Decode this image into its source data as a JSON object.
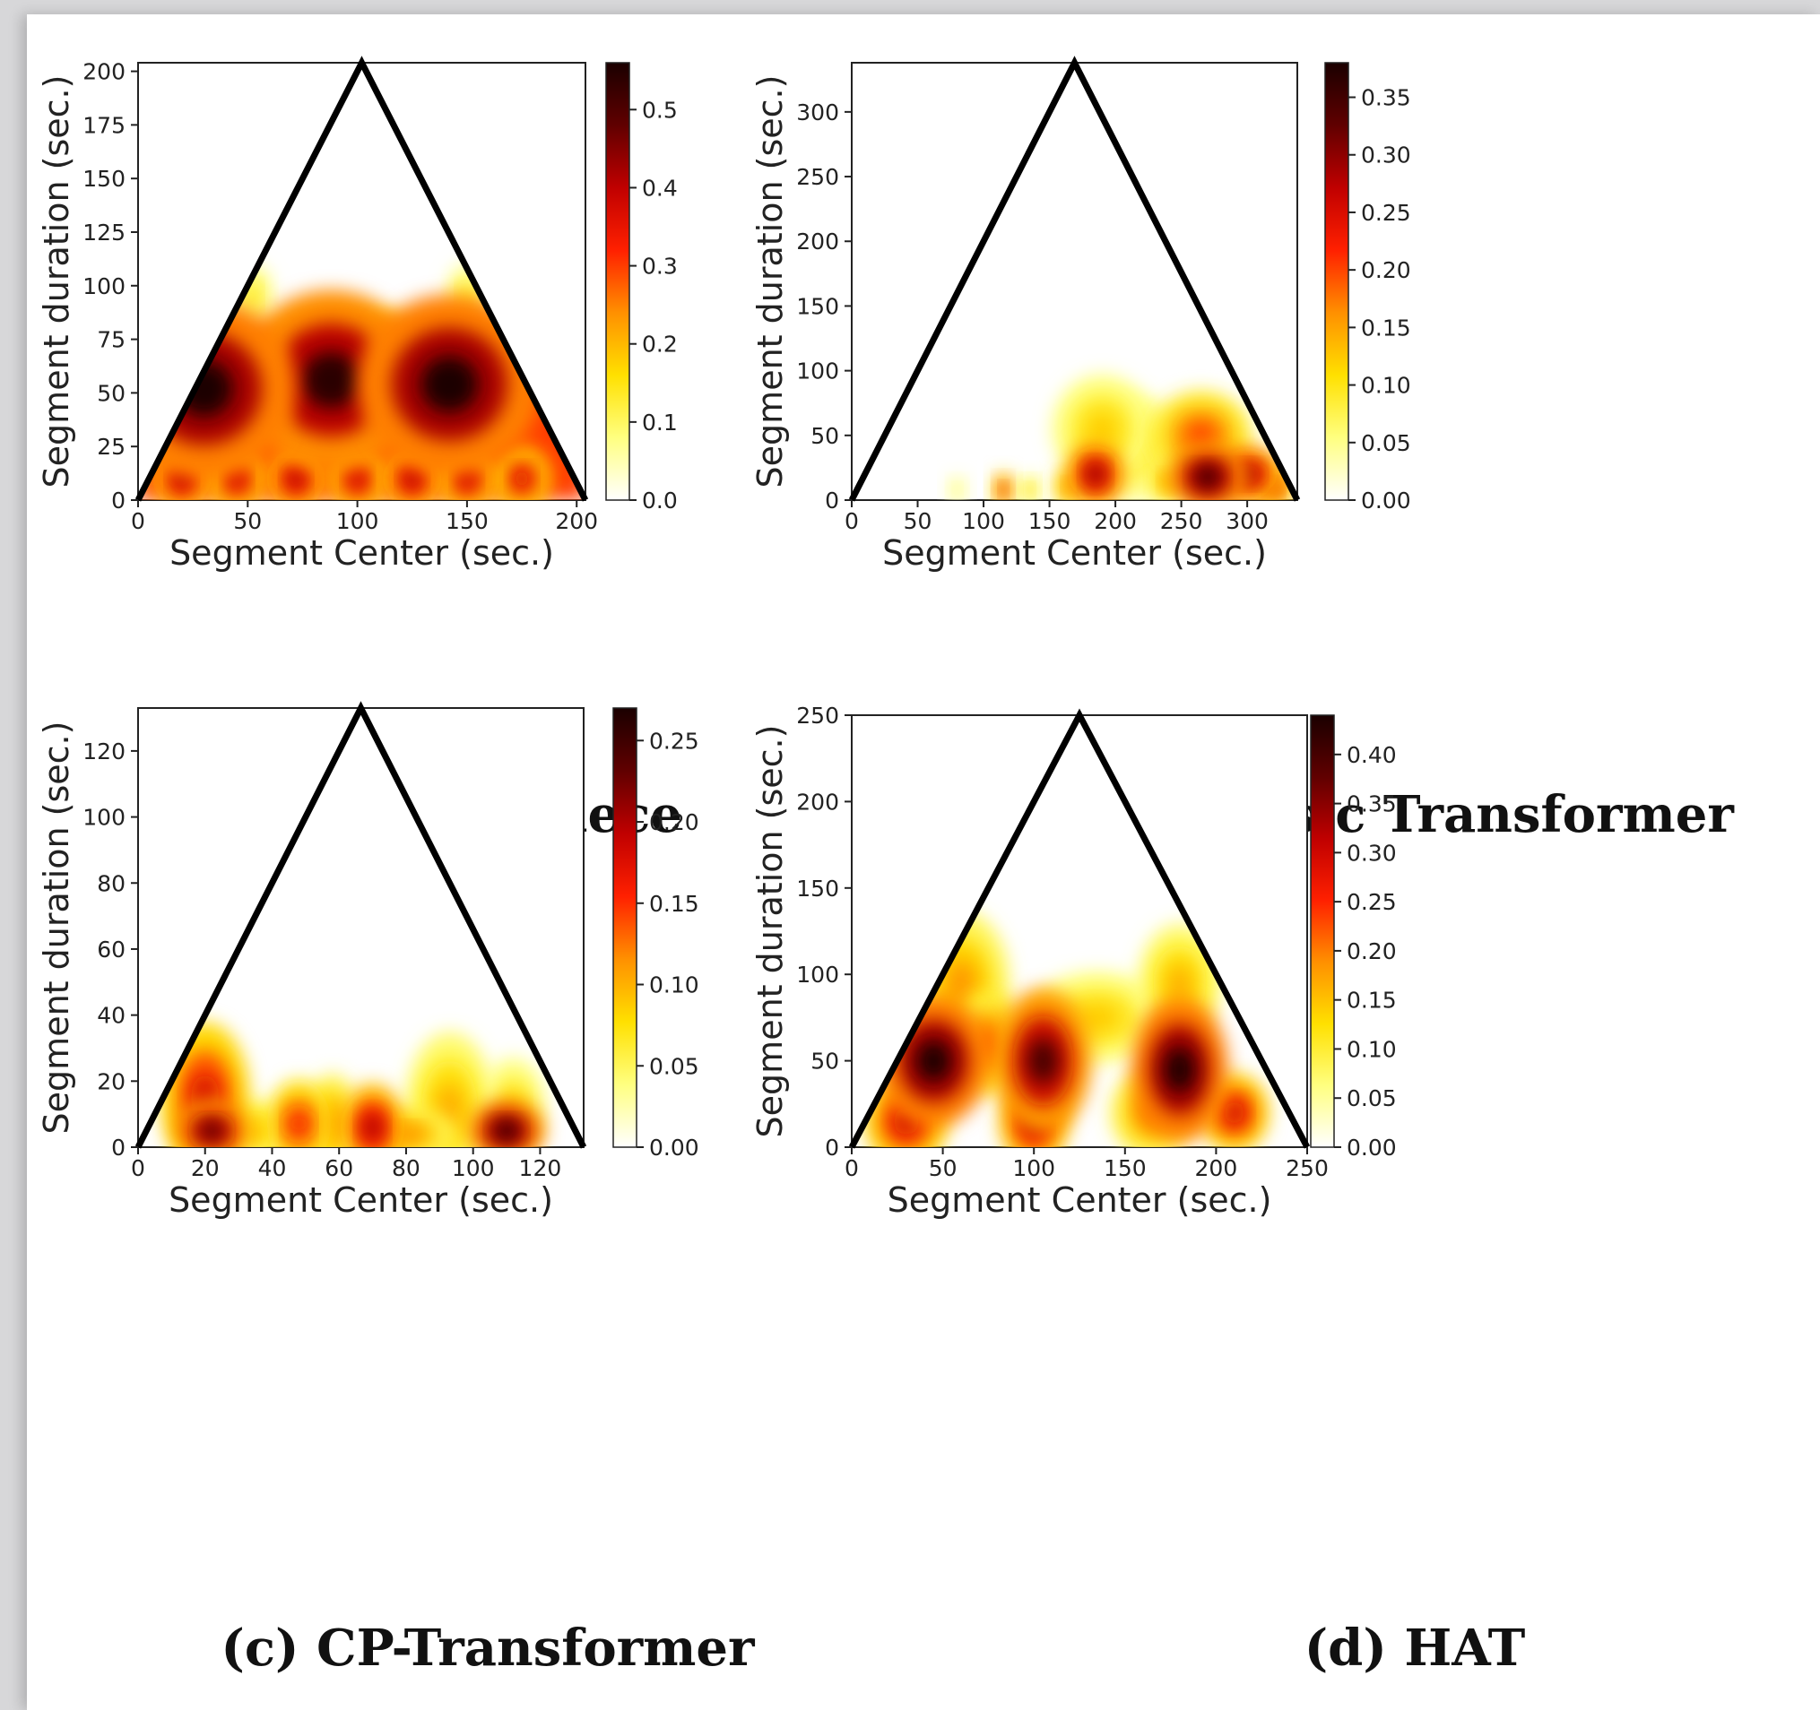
{
  "figure": {
    "captions": [
      "(a) Real piece",
      "(b) Music Transformer",
      "(c) CP-Transformer",
      "(d) HAT"
    ]
  },
  "colormap": {
    "name": "hot (reversed)",
    "stops": [
      "#ffffff",
      "#ffff80",
      "#ffe000",
      "#ff9000",
      "#ff2000",
      "#c00000",
      "#600000",
      "#1a0000"
    ]
  },
  "chart_data": [
    {
      "type": "heatmap",
      "title": "(a) Real piece",
      "xlabel": "Segment Center (sec.)",
      "ylabel": "Segment duration (sec.)",
      "xlim": [
        0,
        204
      ],
      "ylim": [
        0,
        204
      ],
      "xticks": [
        0,
        50,
        100,
        150,
        200
      ],
      "yticks": [
        0,
        25,
        50,
        75,
        100,
        125,
        150,
        175,
        200
      ],
      "xtick_labels": [
        "0",
        "50",
        "100",
        "150",
        "200"
      ],
      "ytick_labels": [
        "0",
        "25",
        "50",
        "75",
        "100",
        "125",
        "150",
        "175",
        "200"
      ],
      "triangle": {
        "x0": 0,
        "x1": 204,
        "apex_x": 102,
        "apex_y": 204
      },
      "colorbar": {
        "min": 0.0,
        "max": 0.56,
        "ticks": [
          "0.0",
          "0.1",
          "0.2",
          "0.3",
          "0.4",
          "0.5"
        ],
        "tick_values": [
          0.0,
          0.1,
          0.2,
          0.3,
          0.4,
          0.5
        ]
      },
      "background_level": 0.3,
      "background_top": 78,
      "blobs": [
        {
          "x": 30,
          "y": 52,
          "v": 0.56,
          "sx": 22,
          "sy": 22
        },
        {
          "x": 88,
          "y": 56,
          "v": 0.54,
          "sx": 22,
          "sy": 22
        },
        {
          "x": 142,
          "y": 54,
          "v": 0.56,
          "sx": 22,
          "sy": 22
        },
        {
          "x": 20,
          "y": 10,
          "v": 0.42,
          "sx": 7,
          "sy": 8
        },
        {
          "x": 45,
          "y": 10,
          "v": 0.4,
          "sx": 7,
          "sy": 8
        },
        {
          "x": 72,
          "y": 10,
          "v": 0.42,
          "sx": 7,
          "sy": 8
        },
        {
          "x": 100,
          "y": 10,
          "v": 0.4,
          "sx": 7,
          "sy": 8
        },
        {
          "x": 125,
          "y": 10,
          "v": 0.42,
          "sx": 7,
          "sy": 8
        },
        {
          "x": 150,
          "y": 10,
          "v": 0.4,
          "sx": 7,
          "sy": 8
        },
        {
          "x": 175,
          "y": 10,
          "v": 0.38,
          "sx": 7,
          "sy": 8
        },
        {
          "x": 52,
          "y": 95,
          "v": 0.14,
          "sx": 5,
          "sy": 8
        },
        {
          "x": 150,
          "y": 95,
          "v": 0.14,
          "sx": 5,
          "sy": 8
        },
        {
          "x": 95,
          "y": 80,
          "v": 0.18,
          "sx": 18,
          "sy": 5
        }
      ]
    },
    {
      "type": "heatmap",
      "title": "(b) Music Transformer",
      "xlabel": "Segment Center (sec.)",
      "ylabel": "Segment duration (sec.)",
      "xlim": [
        0,
        338
      ],
      "ylim": [
        0,
        338
      ],
      "xticks": [
        0,
        50,
        100,
        150,
        200,
        250,
        300
      ],
      "yticks": [
        0,
        50,
        100,
        150,
        200,
        250,
        300
      ],
      "xtick_labels": [
        "0",
        "50",
        "100",
        "150",
        "200",
        "250",
        "300"
      ],
      "ytick_labels": [
        "0",
        "50",
        "100",
        "150",
        "200",
        "250",
        "300"
      ],
      "triangle": {
        "x0": 0,
        "x1": 338,
        "apex_x": 169,
        "apex_y": 338
      },
      "colorbar": {
        "min": 0.0,
        "max": 0.38,
        "ticks": [
          "0.00",
          "0.05",
          "0.10",
          "0.15",
          "0.20",
          "0.25",
          "0.30",
          "0.35"
        ],
        "tick_values": [
          0.0,
          0.05,
          0.1,
          0.15,
          0.2,
          0.25,
          0.3,
          0.35
        ]
      },
      "background_level": 0,
      "background_top": 0,
      "blobs": [
        {
          "x": 185,
          "y": 20,
          "v": 0.3,
          "sx": 12,
          "sy": 14
        },
        {
          "x": 190,
          "y": 55,
          "v": 0.12,
          "sx": 20,
          "sy": 22
        },
        {
          "x": 215,
          "y": 40,
          "v": 0.1,
          "sx": 18,
          "sy": 22
        },
        {
          "x": 265,
          "y": 50,
          "v": 0.2,
          "sx": 20,
          "sy": 18
        },
        {
          "x": 270,
          "y": 18,
          "v": 0.36,
          "sx": 16,
          "sy": 14
        },
        {
          "x": 300,
          "y": 20,
          "v": 0.3,
          "sx": 14,
          "sy": 12
        },
        {
          "x": 320,
          "y": 10,
          "v": 0.25,
          "sx": 8,
          "sy": 8
        },
        {
          "x": 115,
          "y": 8,
          "v": 0.25,
          "sx": 4,
          "sy": 7
        },
        {
          "x": 135,
          "y": 8,
          "v": 0.12,
          "sx": 4,
          "sy": 6
        },
        {
          "x": 80,
          "y": 8,
          "v": 0.06,
          "sx": 4,
          "sy": 6
        },
        {
          "x": 165,
          "y": 10,
          "v": 0.18,
          "sx": 6,
          "sy": 8
        },
        {
          "x": 240,
          "y": 15,
          "v": 0.15,
          "sx": 8,
          "sy": 10
        }
      ]
    },
    {
      "type": "heatmap",
      "title": "(c) CP-Transformer",
      "xlabel": "Segment Center (sec.)",
      "ylabel": "Segment duration (sec.)",
      "xlim": [
        0,
        133
      ],
      "ylim": [
        0,
        133
      ],
      "xticks": [
        0,
        20,
        40,
        60,
        80,
        100,
        120
      ],
      "yticks": [
        0,
        20,
        40,
        60,
        80,
        100,
        120
      ],
      "xtick_labels": [
        "0",
        "20",
        "40",
        "60",
        "80",
        "100",
        "120"
      ],
      "ytick_labels": [
        "0",
        "20",
        "40",
        "60",
        "80",
        "100",
        "120"
      ],
      "triangle": {
        "x0": 0,
        "x1": 133,
        "apex_x": 66.5,
        "apex_y": 133
      },
      "colorbar": {
        "min": 0.0,
        "max": 0.27,
        "ticks": [
          "0.00",
          "0.05",
          "0.10",
          "0.15",
          "0.20",
          "0.25"
        ],
        "tick_values": [
          0.0,
          0.05,
          0.1,
          0.15,
          0.2,
          0.25
        ]
      },
      "background_level": 0,
      "background_top": 0,
      "blobs": [
        {
          "x": 20,
          "y": 15,
          "v": 0.18,
          "sx": 7,
          "sy": 12
        },
        {
          "x": 22,
          "y": 5,
          "v": 0.24,
          "sx": 6,
          "sy": 5
        },
        {
          "x": 48,
          "y": 7,
          "v": 0.16,
          "sx": 5,
          "sy": 7
        },
        {
          "x": 58,
          "y": 7,
          "v": 0.12,
          "sx": 4,
          "sy": 8
        },
        {
          "x": 70,
          "y": 6,
          "v": 0.2,
          "sx": 5,
          "sy": 7
        },
        {
          "x": 93,
          "y": 12,
          "v": 0.1,
          "sx": 7,
          "sy": 12
        },
        {
          "x": 110,
          "y": 5,
          "v": 0.26,
          "sx": 6,
          "sy": 5
        },
        {
          "x": 112,
          "y": 12,
          "v": 0.08,
          "sx": 5,
          "sy": 8
        },
        {
          "x": 35,
          "y": 5,
          "v": 0.1,
          "sx": 4,
          "sy": 5
        },
        {
          "x": 80,
          "y": 4,
          "v": 0.12,
          "sx": 8,
          "sy": 4
        }
      ]
    },
    {
      "type": "heatmap",
      "title": "(d) HAT",
      "xlabel": "Segment Center (sec.)",
      "ylabel": "Segment duration (sec.)",
      "xlim": [
        0,
        250
      ],
      "ylim": [
        0,
        250
      ],
      "xticks": [
        0,
        50,
        100,
        150,
        200,
        250
      ],
      "yticks": [
        0,
        50,
        100,
        150,
        200,
        250
      ],
      "xtick_labels": [
        "0",
        "50",
        "100",
        "150",
        "200",
        "250"
      ],
      "ytick_labels": [
        "0",
        "50",
        "100",
        "150",
        "200",
        "250"
      ],
      "triangle": {
        "x0": 0,
        "x1": 250,
        "apex_x": 125,
        "apex_y": 250
      },
      "colorbar": {
        "min": 0.0,
        "max": 0.44,
        "ticks": [
          "0.00",
          "0.05",
          "0.10",
          "0.15",
          "0.20",
          "0.25",
          "0.30",
          "0.35",
          "0.40"
        ],
        "tick_values": [
          0.0,
          0.05,
          0.1,
          0.15,
          0.2,
          0.25,
          0.3,
          0.35,
          0.4
        ]
      },
      "background_level": 0,
      "background_top": 0,
      "blobs": [
        {
          "x": 45,
          "y": 50,
          "v": 0.44,
          "sx": 16,
          "sy": 20
        },
        {
          "x": 60,
          "y": 95,
          "v": 0.18,
          "sx": 14,
          "sy": 22
        },
        {
          "x": 30,
          "y": 15,
          "v": 0.3,
          "sx": 12,
          "sy": 14
        },
        {
          "x": 105,
          "y": 50,
          "v": 0.4,
          "sx": 14,
          "sy": 22
        },
        {
          "x": 100,
          "y": 15,
          "v": 0.32,
          "sx": 10,
          "sy": 14
        },
        {
          "x": 135,
          "y": 75,
          "v": 0.14,
          "sx": 20,
          "sy": 14
        },
        {
          "x": 180,
          "y": 45,
          "v": 0.44,
          "sx": 14,
          "sy": 22
        },
        {
          "x": 180,
          "y": 95,
          "v": 0.16,
          "sx": 12,
          "sy": 18
        },
        {
          "x": 165,
          "y": 20,
          "v": 0.2,
          "sx": 12,
          "sy": 14
        },
        {
          "x": 210,
          "y": 20,
          "v": 0.3,
          "sx": 10,
          "sy": 12
        },
        {
          "x": 75,
          "y": 60,
          "v": 0.22,
          "sx": 10,
          "sy": 16
        }
      ]
    }
  ]
}
